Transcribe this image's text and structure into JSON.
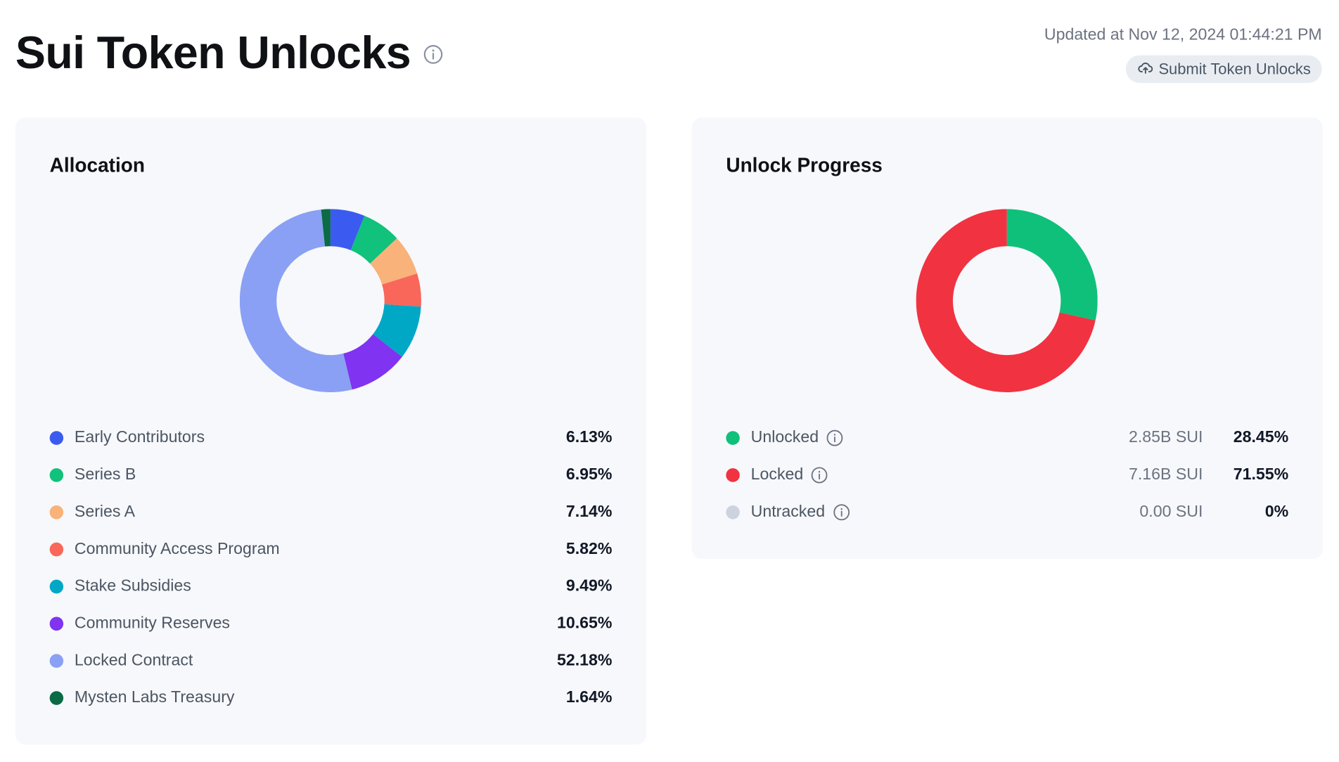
{
  "header": {
    "title": "Sui Token Unlocks",
    "updated": "Updated at Nov 12, 2024 01:44:21 PM",
    "submit_label": "Submit Token Unlocks"
  },
  "allocation": {
    "title": "Allocation",
    "items": [
      {
        "label": "Early Contributors",
        "pct": "6.13%"
      },
      {
        "label": "Series B",
        "pct": "6.95%"
      },
      {
        "label": "Series A",
        "pct": "7.14%"
      },
      {
        "label": "Community Access Program",
        "pct": "5.82%"
      },
      {
        "label": "Stake Subsidies",
        "pct": "9.49%"
      },
      {
        "label": "Community Reserves",
        "pct": "10.65%"
      },
      {
        "label": "Locked Contract",
        "pct": "52.18%"
      },
      {
        "label": "Mysten Labs Treasury",
        "pct": "1.64%"
      }
    ]
  },
  "unlock": {
    "title": "Unlock Progress",
    "items": [
      {
        "label": "Unlocked",
        "amount": "2.85B SUI",
        "pct": "28.45%"
      },
      {
        "label": "Locked",
        "amount": "7.16B SUI",
        "pct": "71.55%"
      },
      {
        "label": "Untracked",
        "amount": "0.00 SUI",
        "pct": "0%"
      }
    ]
  },
  "chart_data": [
    {
      "type": "pie",
      "title": "Allocation",
      "categories": [
        "Early Contributors",
        "Series B",
        "Series A",
        "Community Access Program",
        "Stake Subsidies",
        "Community Reserves",
        "Locked Contract",
        "Mysten Labs Treasury"
      ],
      "values": [
        6.13,
        6.95,
        7.14,
        5.82,
        9.49,
        10.65,
        52.18,
        1.64
      ],
      "colors": [
        "#3b5bf0",
        "#10c27c",
        "#f8b27a",
        "#f9665a",
        "#00a8c6",
        "#8033f0",
        "#8aa0f4",
        "#0a6b45"
      ]
    },
    {
      "type": "pie",
      "title": "Unlock Progress",
      "categories": [
        "Unlocked",
        "Locked",
        "Untracked"
      ],
      "values": [
        28.45,
        71.55,
        0
      ],
      "colors": [
        "#0fc07a",
        "#f13241",
        "#cdd3de"
      ]
    }
  ]
}
